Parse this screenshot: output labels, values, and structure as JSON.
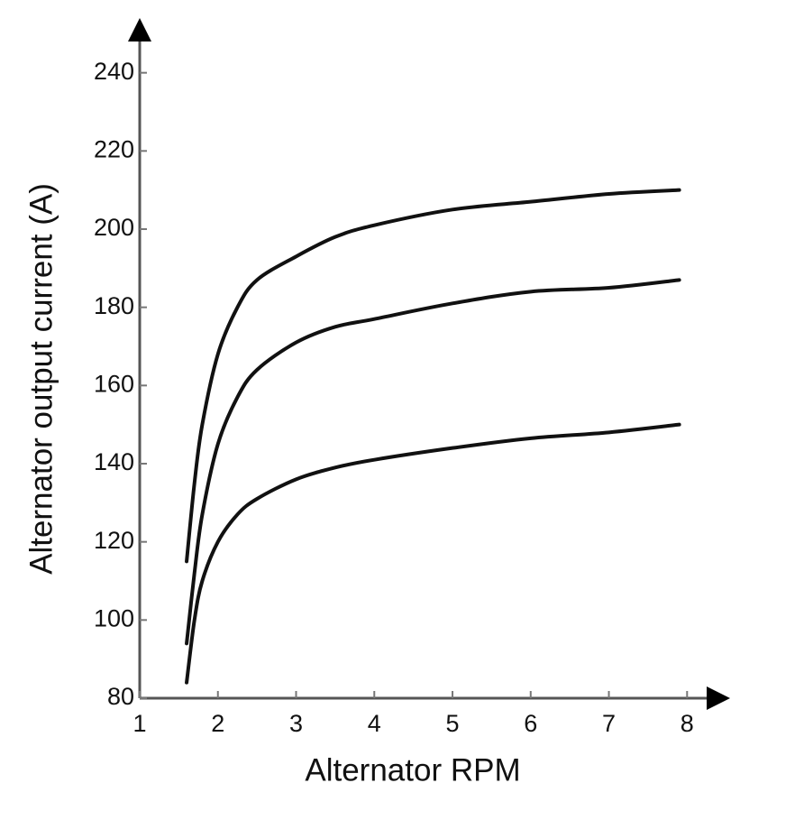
{
  "chart_data": {
    "type": "line",
    "x_label": "Alternator RPM",
    "y_label": "Alternator output current (A)",
    "x": [
      1.6,
      1.7,
      1.8,
      2,
      2.25,
      2.5,
      3,
      3.5,
      4,
      5,
      6,
      7,
      7.9
    ],
    "series": [
      {
        "color": "#111111",
        "values": [
          115,
          135,
          150,
          168,
          180,
          187,
          193,
          198,
          201,
          205,
          207,
          209,
          210
        ]
      },
      {
        "color": "#111111",
        "values": [
          94,
          112,
          127,
          145,
          157,
          164,
          171,
          175,
          177,
          181,
          184,
          185,
          187
        ]
      },
      {
        "color": "#111111",
        "values": [
          84,
          100,
          110,
          120,
          127,
          131,
          136,
          139,
          141,
          144,
          146.5,
          148,
          150
        ]
      }
    ],
    "xlim": [
      1,
      8.55
    ],
    "ylim": [
      80,
      254
    ],
    "xticks": [
      1,
      2,
      3,
      4,
      5,
      6,
      7,
      8
    ],
    "yticks": [
      80,
      100,
      120,
      140,
      160,
      180,
      200,
      220,
      240
    ],
    "grid": false
  }
}
